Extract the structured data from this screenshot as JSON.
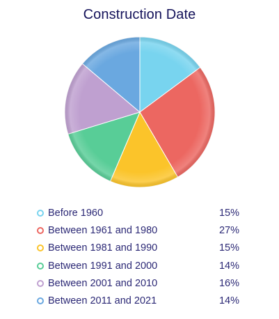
{
  "chart_data": {
    "type": "pie",
    "title": "Construction Date",
    "slices": [
      {
        "label": "Before 1960",
        "value": 15,
        "display": "15%",
        "color": "#78d4ef"
      },
      {
        "label": "Between 1961 and 1980",
        "value": 27,
        "display": "27%",
        "color": "#ec6761"
      },
      {
        "label": "Between 1981 and 1990",
        "value": 15,
        "display": "15%",
        "color": "#fbc42a"
      },
      {
        "label": "Between 1991 and 2000",
        "value": 14,
        "display": "14%",
        "color": "#58cd97"
      },
      {
        "label": "Between 2001 and 2010",
        "value": 16,
        "display": "16%",
        "color": "#bfa0d0"
      },
      {
        "label": "Between 2011 and 2021",
        "value": 14,
        "display": "14%",
        "color": "#6aa8e0"
      }
    ],
    "legend_position": "bottom",
    "start_angle": "top, clockwise"
  }
}
